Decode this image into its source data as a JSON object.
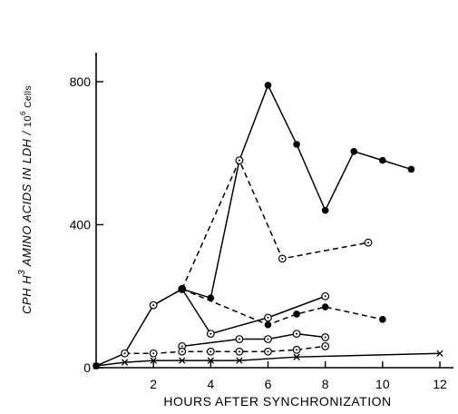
{
  "chart_data": {
    "type": "line",
    "title": "",
    "xlabel": "HOURS AFTER SYNCHRONIZATION",
    "ylabel_main": "CPH H",
    "ylabel_sup": "3",
    "ylabel_rest": " AMINO ACIDS IN LDH / ",
    "ylabel_unit_base": "10",
    "ylabel_unit_sup": "6",
    "ylabel_unit_rest": " Cells",
    "xlim": [
      0,
      12.5
    ],
    "ylim": [
      0,
      800
    ],
    "xticks": [
      2,
      4,
      6,
      8,
      10,
      12
    ],
    "yticks": [
      0,
      400,
      800
    ],
    "xtick_labels": [
      "2",
      "4",
      "6",
      "8",
      "10",
      "12"
    ],
    "ytick_labels": [
      "0",
      "400",
      "800"
    ],
    "grid": false,
    "series": [
      {
        "marker": "filled-circle",
        "dash": "solid",
        "x": [
          0,
          1,
          2,
          3,
          4,
          5,
          6,
          7,
          8,
          9,
          10,
          11
        ],
        "y": [
          5,
          40,
          175,
          220,
          195,
          580,
          790,
          625,
          440,
          605,
          580,
          555
        ]
      },
      {
        "marker": "circle-dot",
        "dash": "dashed",
        "x": [
          3,
          5,
          6.5,
          9.5
        ],
        "y": [
          220,
          580,
          305,
          350
        ]
      },
      {
        "marker": "circle-dot",
        "dash": "solid",
        "x": [
          2,
          3,
          4,
          6,
          8
        ],
        "y": [
          175,
          220,
          95,
          140,
          200
        ]
      },
      {
        "marker": "filled-circle",
        "dash": "dashed",
        "x": [
          3,
          6,
          7,
          8,
          10
        ],
        "y": [
          220,
          120,
          150,
          170,
          135
        ]
      },
      {
        "marker": "circle-dot",
        "dash": "solid",
        "x": [
          3,
          5,
          6,
          7,
          8
        ],
        "y": [
          60,
          80,
          80,
          95,
          85
        ]
      },
      {
        "marker": "circle-dot",
        "dash": "dashed",
        "x": [
          1,
          2,
          3,
          4,
          5,
          6,
          7,
          8
        ],
        "y": [
          40,
          40,
          45,
          45,
          45,
          45,
          50,
          60
        ]
      },
      {
        "marker": "cross",
        "dash": "solid",
        "x": [
          0,
          1,
          2,
          3,
          4,
          5,
          7,
          12
        ],
        "y": [
          5,
          15,
          20,
          20,
          20,
          20,
          30,
          40
        ]
      }
    ]
  }
}
